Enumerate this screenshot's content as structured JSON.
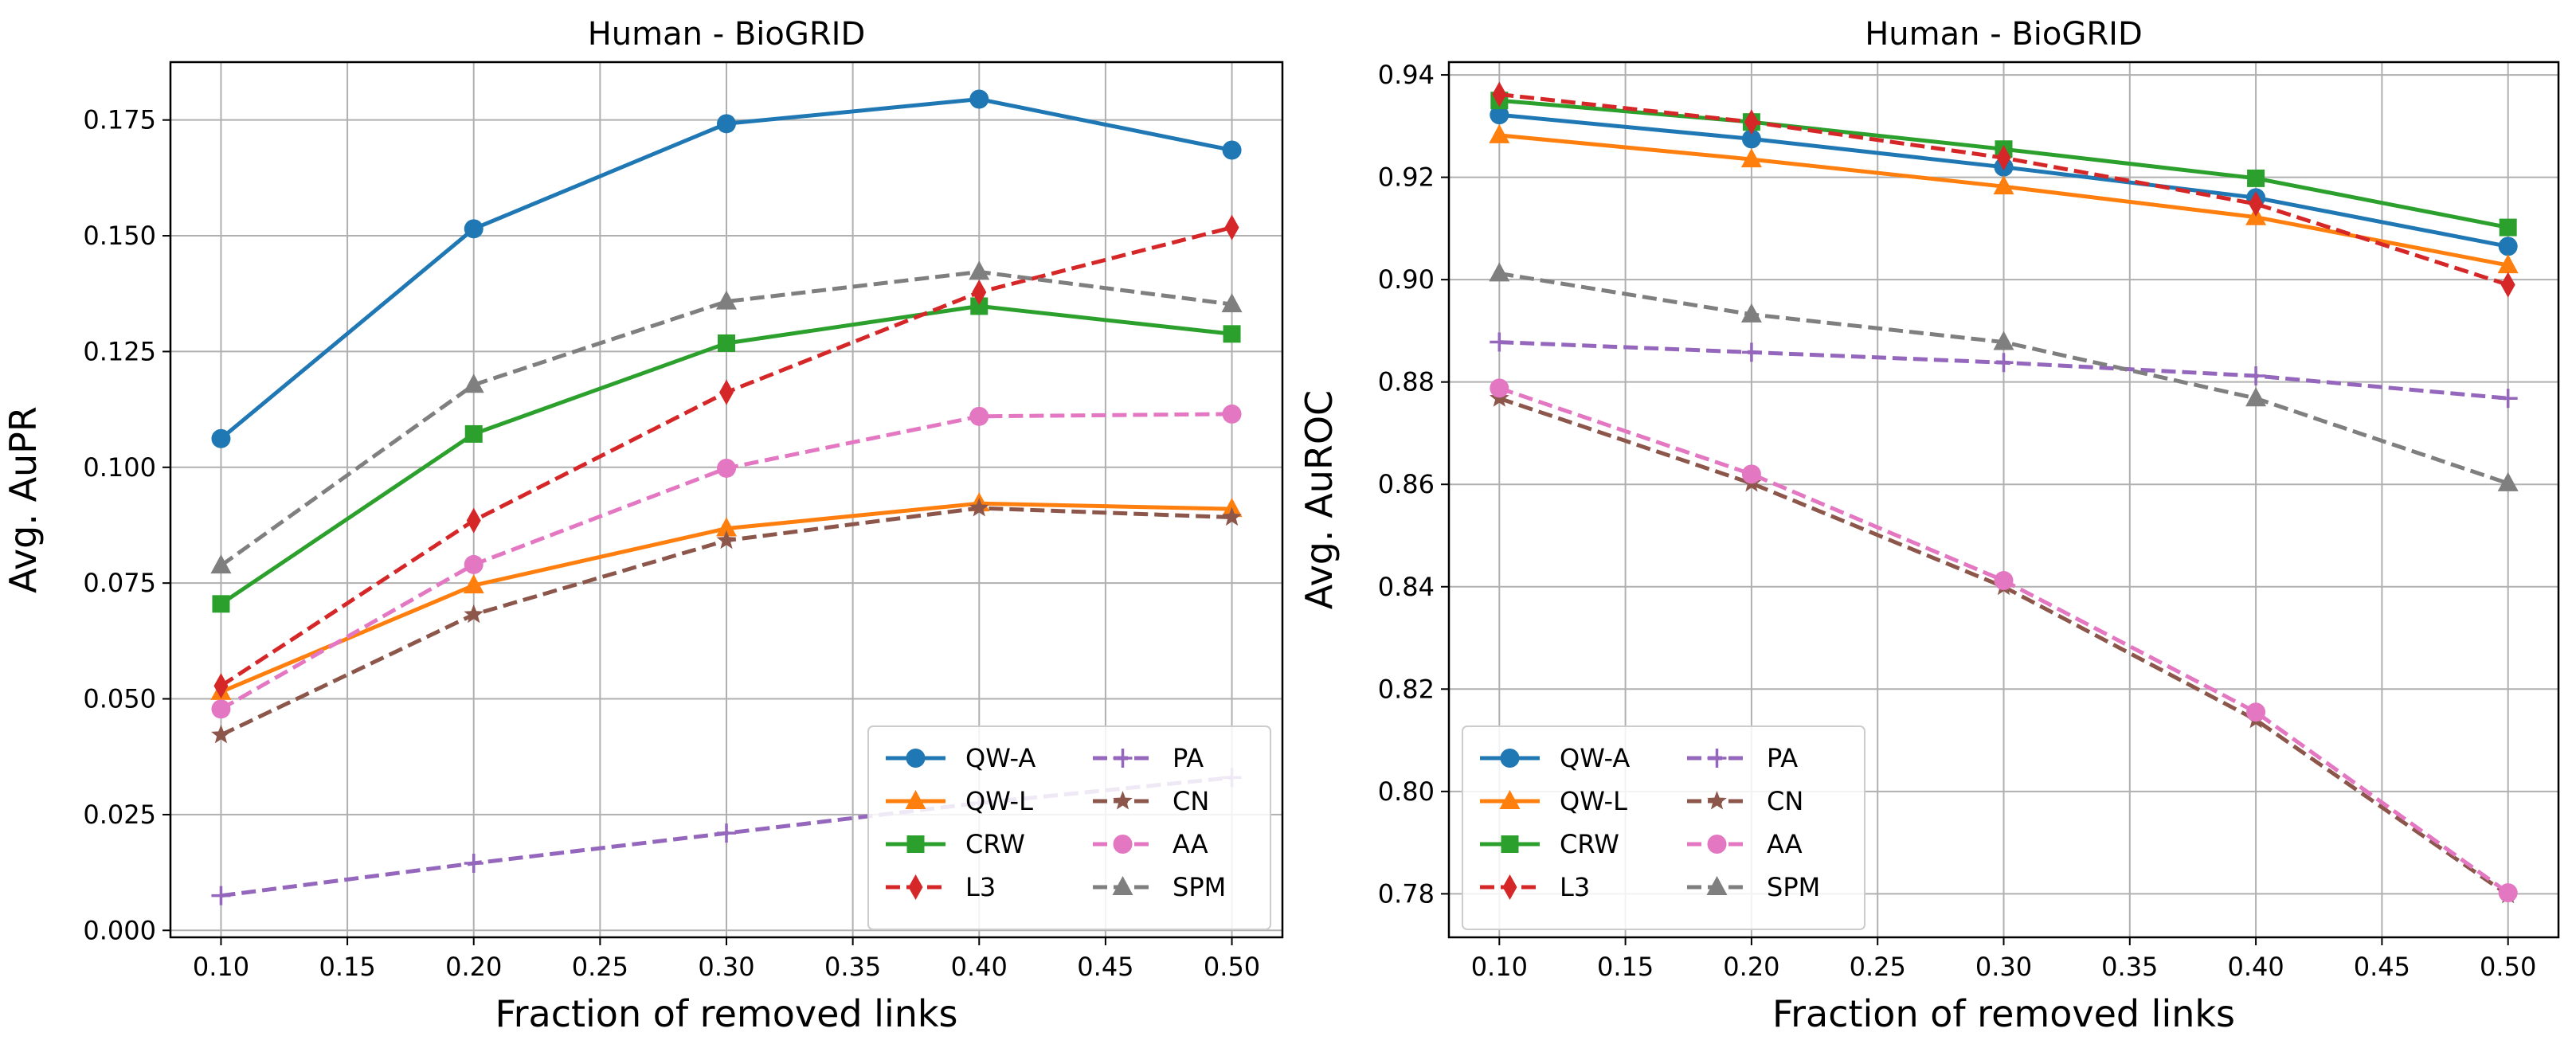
{
  "chart_data": [
    {
      "type": "line",
      "title": "Human - BioGRID",
      "xlabel": "Fraction of removed links",
      "ylabel": "Avg. AuPR",
      "x": [
        0.1,
        0.2,
        0.3,
        0.4,
        0.5
      ],
      "xticks": [
        "0.10",
        "0.15",
        "0.20",
        "0.25",
        "0.30",
        "0.35",
        "0.40",
        "0.45",
        "0.50"
      ],
      "yticks": [
        "0.000",
        "0.025",
        "0.050",
        "0.075",
        "0.100",
        "0.125",
        "0.150",
        "0.175"
      ],
      "xlim": [
        0.08,
        0.52
      ],
      "ylim": [
        -0.0015,
        0.1875
      ],
      "grid": true,
      "legend_position": "lower-right",
      "series": [
        {
          "name": "QW-A",
          "color": "#1f77b4",
          "marker": "circle",
          "dashed": false,
          "values": [
            0.1062,
            0.1515,
            0.1742,
            0.1795,
            0.1685
          ]
        },
        {
          "name": "QW-L",
          "color": "#ff7f0e",
          "marker": "triangle-up",
          "dashed": false,
          "values": [
            0.0515,
            0.0745,
            0.0868,
            0.0922,
            0.091
          ]
        },
        {
          "name": "CRW",
          "color": "#2ca02c",
          "marker": "square",
          "dashed": false,
          "values": [
            0.0705,
            0.1072,
            0.1268,
            0.1348,
            0.1288
          ]
        },
        {
          "name": "L3",
          "color": "#d62728",
          "marker": "thin-diamond",
          "dashed": true,
          "values": [
            0.0528,
            0.0885,
            0.1162,
            0.1378,
            0.1518
          ]
        },
        {
          "name": "PA",
          "color": "#9467bd",
          "marker": "plus",
          "dashed": true,
          "values": [
            0.0075,
            0.0145,
            0.021,
            0.0275,
            0.033
          ]
        },
        {
          "name": "CN",
          "color": "#8c564b",
          "marker": "star",
          "dashed": true,
          "values": [
            0.0422,
            0.0682,
            0.0842,
            0.0912,
            0.0892
          ]
        },
        {
          "name": "AA",
          "color": "#e377c2",
          "marker": "circle",
          "dashed": true,
          "values": [
            0.0478,
            0.079,
            0.0998,
            0.111,
            0.1115
          ]
        },
        {
          "name": "SPM",
          "color": "#7f7f7f",
          "marker": "triangle-up",
          "dashed": true,
          "values": [
            0.0788,
            0.1178,
            0.1358,
            0.1422,
            0.1352
          ]
        }
      ]
    },
    {
      "type": "line",
      "title": "Human - BioGRID",
      "xlabel": "Fraction of removed links",
      "ylabel": "Avg. AuROC",
      "x": [
        0.1,
        0.2,
        0.3,
        0.4,
        0.5
      ],
      "xticks": [
        "0.10",
        "0.15",
        "0.20",
        "0.25",
        "0.30",
        "0.35",
        "0.40",
        "0.45",
        "0.50"
      ],
      "yticks": [
        "0.78",
        "0.80",
        "0.82",
        "0.84",
        "0.86",
        "0.88",
        "0.90",
        "0.92",
        "0.94"
      ],
      "xlim": [
        0.08,
        0.52
      ],
      "ylim": [
        0.7715,
        0.9425
      ],
      "grid": true,
      "legend_position": "lower-left",
      "series": [
        {
          "name": "QW-A",
          "color": "#1f77b4",
          "marker": "circle",
          "dashed": false,
          "values": [
            0.9322,
            0.9275,
            0.922,
            0.916,
            0.9065
          ]
        },
        {
          "name": "QW-L",
          "color": "#ff7f0e",
          "marker": "triangle-up",
          "dashed": false,
          "values": [
            0.9282,
            0.9235,
            0.9182,
            0.9122,
            0.9028
          ]
        },
        {
          "name": "CRW",
          "color": "#2ca02c",
          "marker": "square",
          "dashed": false,
          "values": [
            0.935,
            0.9308,
            0.9255,
            0.9198,
            0.9102
          ]
        },
        {
          "name": "L3",
          "color": "#d62728",
          "marker": "thin-diamond",
          "dashed": true,
          "values": [
            0.9362,
            0.9308,
            0.9238,
            0.9148,
            0.899
          ]
        },
        {
          "name": "PA",
          "color": "#9467bd",
          "marker": "plus",
          "dashed": true,
          "values": [
            0.8878,
            0.8858,
            0.8838,
            0.8812,
            0.8768
          ]
        },
        {
          "name": "CN",
          "color": "#8c564b",
          "marker": "star",
          "dashed": true,
          "values": [
            0.8768,
            0.8602,
            0.84,
            0.814,
            0.7798
          ]
        },
        {
          "name": "AA",
          "color": "#e377c2",
          "marker": "circle",
          "dashed": true,
          "values": [
            0.8788,
            0.862,
            0.8412,
            0.8155,
            0.7802
          ]
        },
        {
          "name": "SPM",
          "color": "#7f7f7f",
          "marker": "triangle-up",
          "dashed": true,
          "values": [
            0.9012,
            0.8932,
            0.8878,
            0.8768,
            0.8602
          ]
        }
      ]
    }
  ]
}
